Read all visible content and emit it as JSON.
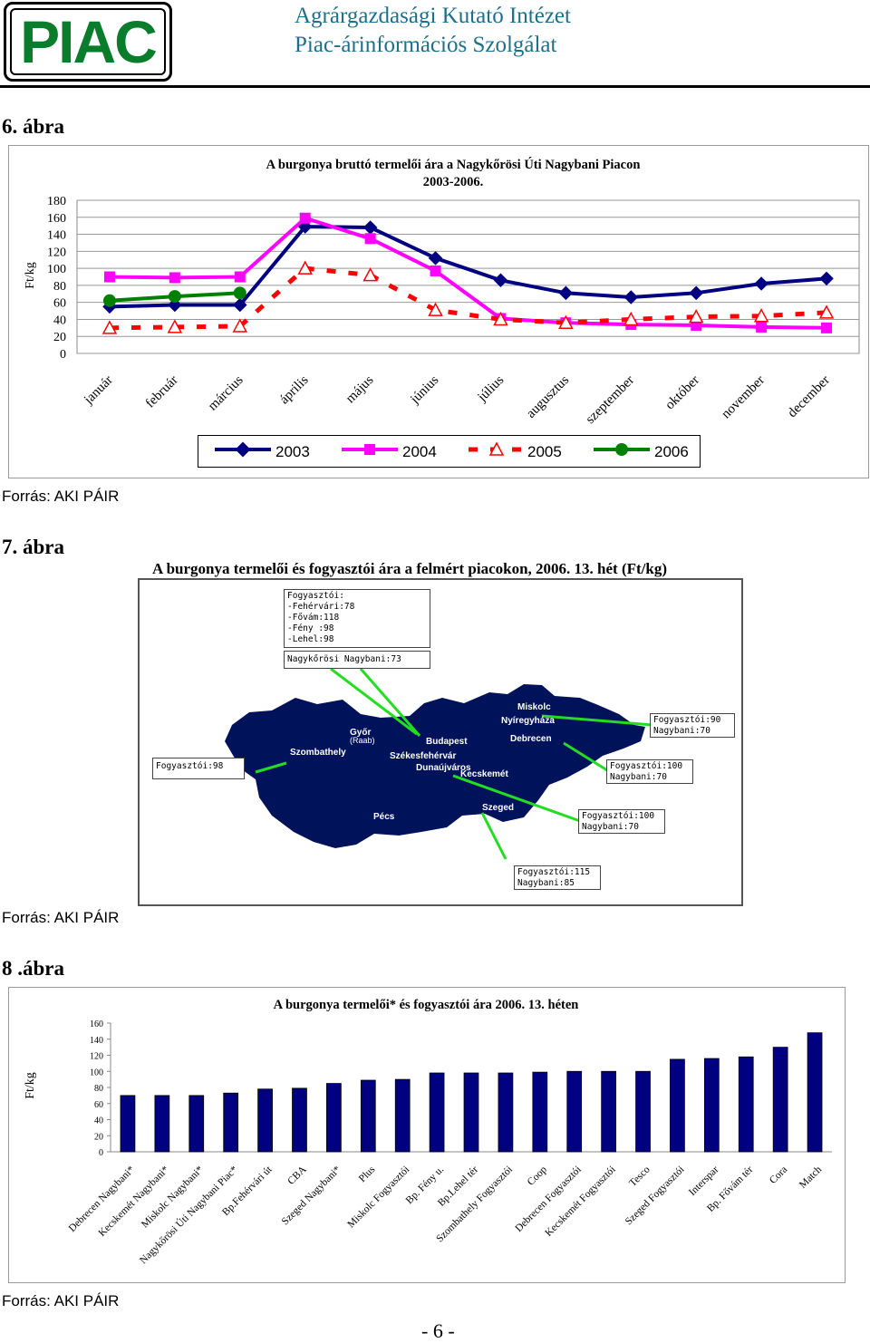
{
  "header": {
    "logo": "PIAC",
    "org_line1": "Agrárgazdasági Kutató Intézet",
    "org_line2": "Piac-árinformációs Szolgálat",
    "colors": {
      "logo": "#0a7d2c",
      "org": "#1f6e8a"
    }
  },
  "figures": {
    "fig6": {
      "label": "6. ábra",
      "source": "Forrás: AKI PÁIR"
    },
    "fig7": {
      "label": "7. ábra",
      "source": "Forrás: AKI PÁIR"
    },
    "fig8": {
      "label": "8 .ábra",
      "source": "Forrás: AKI PÁIR"
    }
  },
  "chart_data": [
    {
      "type": "line",
      "title": "A burgonya bruttó termelői ára a Nagykőrösi Úti Nagybani Piacon",
      "subtitle": "2003-2006.",
      "ylabel": "Ft/kg",
      "xlabel": "",
      "ylim": [
        0,
        180
      ],
      "yticks": [
        0,
        20,
        40,
        60,
        80,
        100,
        120,
        140,
        160,
        180
      ],
      "grid": true,
      "legend": "bottom",
      "categories": [
        "január",
        "február",
        "március",
        "április",
        "május",
        "június",
        "július",
        "augusztus",
        "szeptember",
        "október",
        "november",
        "december"
      ],
      "series": [
        {
          "name": "2003",
          "color": "#000080",
          "marker": "diamond",
          "values": [
            55,
            57,
            57,
            149,
            148,
            112,
            86,
            71,
            66,
            71,
            82,
            88
          ]
        },
        {
          "name": "2004",
          "color": "#ff00ff",
          "marker": "square",
          "values": [
            90,
            89,
            90,
            159,
            135,
            97,
            41,
            36,
            34,
            33,
            31,
            30
          ]
        },
        {
          "name": "2005",
          "color": "#ff0000",
          "marker": "triangle",
          "dashed": true,
          "values": [
            30,
            31,
            32,
            100,
            92,
            51,
            40,
            36,
            40,
            43,
            44,
            48
          ]
        },
        {
          "name": "2006",
          "color": "#008000",
          "marker": "circle",
          "values": [
            62,
            67,
            71,
            null,
            null,
            null,
            null,
            null,
            null,
            null,
            null,
            null
          ]
        }
      ]
    },
    {
      "type": "bar",
      "title": "A burgonya termelői* és fogyasztói ára 2006. 13. héten",
      "ylabel": "Ft/kg",
      "xlabel": "",
      "ylim": [
        0,
        160
      ],
      "yticks": [
        0,
        20,
        40,
        60,
        80,
        100,
        120,
        140,
        160
      ],
      "grid": false,
      "bar_color": "#000080",
      "categories": [
        "Debrecen Nagybani*",
        "Kecskemét Nagybani*",
        "Miskolc Nagybani*",
        "Nagykőrösi Úti Nagybani Piac*",
        "Bp.Fehérvári út",
        "CBA",
        "Szeged Nagybani*",
        "Plus",
        "Miskolc Fogyasztói",
        "Bp. Fény u.",
        "Bp.Lehel tér",
        "Szombathely Fogyasztói",
        "Coop",
        "Debrecen Fogyasztói",
        "Kecskemét Fogyasztói",
        "Tesco",
        "Szeged Fogyasztói",
        "Interspar",
        "Bp. Fővám tér",
        "Cora",
        "Match"
      ],
      "values": [
        70,
        70,
        70,
        73,
        78,
        79,
        85,
        89,
        90,
        98,
        98,
        98,
        99,
        100,
        100,
        100,
        115,
        116,
        118,
        130,
        148
      ]
    }
  ],
  "map": {
    "title": "A burgonya termelői és fogyasztói ára a felmért piacokon, 2006. 13. hét (Ft/kg)",
    "colors": {
      "land": "#00125a",
      "leader": "#22dd22"
    },
    "cities": [
      "Miskolc",
      "Nyíregyháza",
      "Győr",
      "(Raab)",
      "Budapest",
      "Szombathely",
      "Székesfehérvár",
      "Debrecen",
      "Dunaújváros",
      "Kecskemét",
      "Szeged",
      "Pécs"
    ],
    "boxes": {
      "budapest": [
        "Fogyasztói:",
        "-Fehérvári:78",
        "-Fővám:118",
        "-Fény :98",
        "-Lehel:98"
      ],
      "budapest_wholesale": "Nagykőrösi Nagybani:73",
      "szombathely": "Fogyasztói:98",
      "miskolc": [
        "Fogyasztói:90",
        "Nagybani:70"
      ],
      "debrecen": [
        "Fogyasztói:100",
        "Nagybani:70"
      ],
      "kecskemet": [
        "Fogyasztói:100",
        "Nagybani:70"
      ],
      "szeged": [
        "Fogyasztói:115",
        "Nagybani:85"
      ]
    }
  },
  "footer": {
    "page": "- 6 -"
  }
}
